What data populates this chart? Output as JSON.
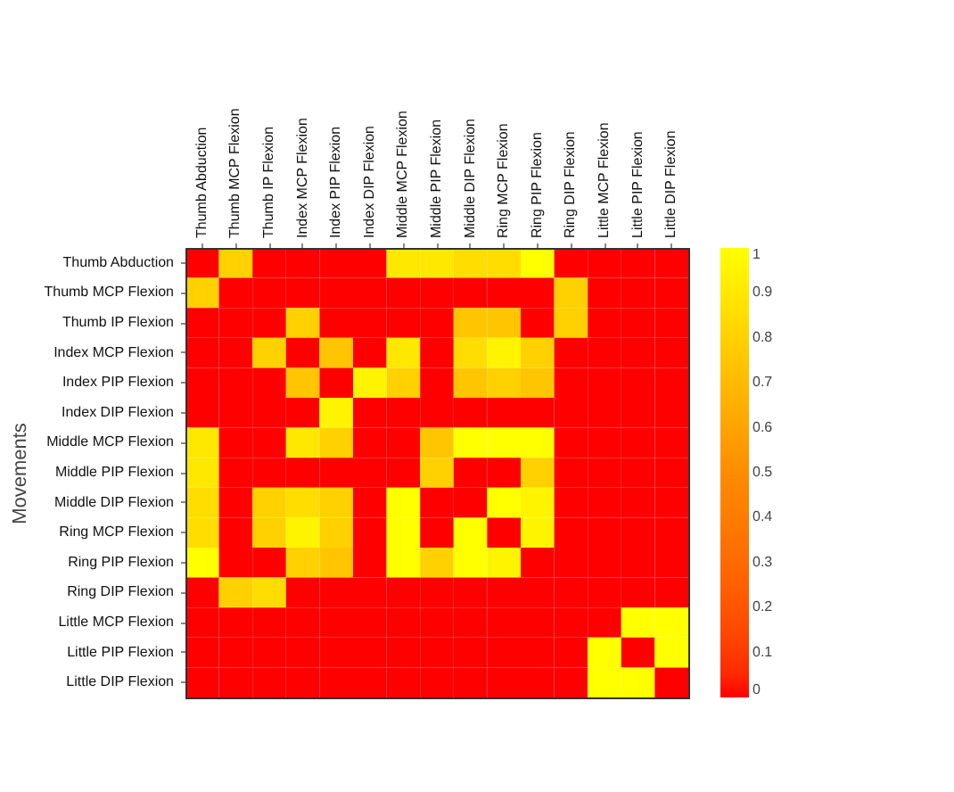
{
  "chart_data": {
    "type": "heatmap",
    "ylabel": "Movements",
    "categories": [
      "Thumb Abduction",
      "Thumb MCP Flexion",
      "Thumb IP Flexion",
      "Index MCP Flexion",
      "Index PIP Flexion",
      "Index DIP Flexion",
      "Middle MCP Flexion",
      "Middle PIP Flexion",
      "Middle DIP Flexion",
      "Ring MCP Flexion",
      "Ring PIP Flexion",
      "Ring DIP Flexion",
      "Little MCP Flexion",
      "Little PIP Flexion",
      "Little DIP Flexion"
    ],
    "y_categories": [
      "Thumb Abduction",
      "Thumb MCP Flexion",
      "Thumb IP Flexion",
      "Index MCP Flexion",
      "Index PIP Flexion",
      "Index DIP Flexion",
      "Middle MCP Flexion",
      "Middle PIP Flexion",
      "Middle DIP Flexion",
      "Ring MCP Flexion",
      "Ring PIP Flexion",
      "Ring DIP Flexion",
      "Little MCP Flexion",
      "Little PIP Flexion",
      "Little DIP Flexion"
    ],
    "cells": [
      [
        0,
        0.8,
        0,
        0,
        0,
        0,
        0.9,
        0.9,
        0.85,
        0.85,
        1,
        0,
        0,
        0,
        0
      ],
      [
        0.8,
        0,
        0,
        0,
        0,
        0,
        0,
        0,
        0,
        0,
        0,
        0.8,
        0,
        0,
        0
      ],
      [
        0,
        0,
        0,
        0.8,
        0,
        0,
        0,
        0,
        0.75,
        0.75,
        0,
        0.8,
        0,
        0,
        0
      ],
      [
        0,
        0,
        0.8,
        0,
        0.75,
        0,
        0.9,
        0,
        0.85,
        0.95,
        0.8,
        0,
        0,
        0,
        0
      ],
      [
        0,
        0,
        0,
        0.75,
        0,
        0.95,
        0.8,
        0,
        0.75,
        0.8,
        0.75,
        0,
        0,
        0,
        0
      ],
      [
        0,
        0,
        0,
        0,
        0.95,
        0,
        0,
        0,
        0,
        0,
        0,
        0,
        0,
        0,
        0
      ],
      [
        0.9,
        0,
        0,
        0.9,
        0.8,
        0,
        0,
        0.75,
        1,
        1,
        1,
        0,
        0,
        0,
        0
      ],
      [
        0.9,
        0,
        0,
        0,
        0,
        0,
        0,
        0.8,
        0,
        0,
        0.8,
        0,
        0,
        0,
        0
      ],
      [
        0.85,
        0,
        0.8,
        0.85,
        0.8,
        0,
        1,
        0,
        0,
        1,
        0.95,
        0,
        0,
        0,
        0
      ],
      [
        0.85,
        0,
        0.8,
        0.95,
        0.8,
        0,
        1,
        0,
        1,
        0,
        0.95,
        0,
        0,
        0,
        0
      ],
      [
        1,
        0,
        0,
        0.8,
        0.75,
        0,
        1,
        0.8,
        1,
        0.95,
        0,
        0,
        0,
        0,
        0
      ],
      [
        0,
        0.8,
        0.85,
        0,
        0,
        0,
        0,
        0,
        0,
        0,
        0,
        0,
        0,
        0,
        0
      ],
      [
        0,
        0,
        0,
        0,
        0,
        0,
        0,
        0,
        0,
        0,
        0,
        0,
        0,
        1,
        1
      ],
      [
        0,
        0,
        0,
        0,
        0,
        0,
        0,
        0,
        0,
        0,
        0,
        0,
        1,
        0,
        1
      ],
      [
        0,
        0,
        0,
        0,
        0,
        0,
        0,
        0,
        0,
        0,
        0,
        0,
        1,
        1,
        0
      ]
    ],
    "clim": [
      0,
      1
    ],
    "cticks": [
      0,
      0.1,
      0.2,
      0.3,
      0.4,
      0.5,
      0.6,
      0.7,
      0.8,
      0.9,
      1
    ]
  }
}
